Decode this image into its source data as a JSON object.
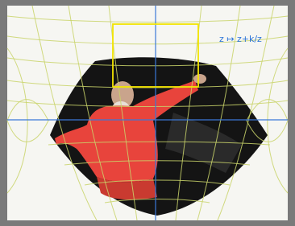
{
  "caption": "z ↦ z+k/z"
}
